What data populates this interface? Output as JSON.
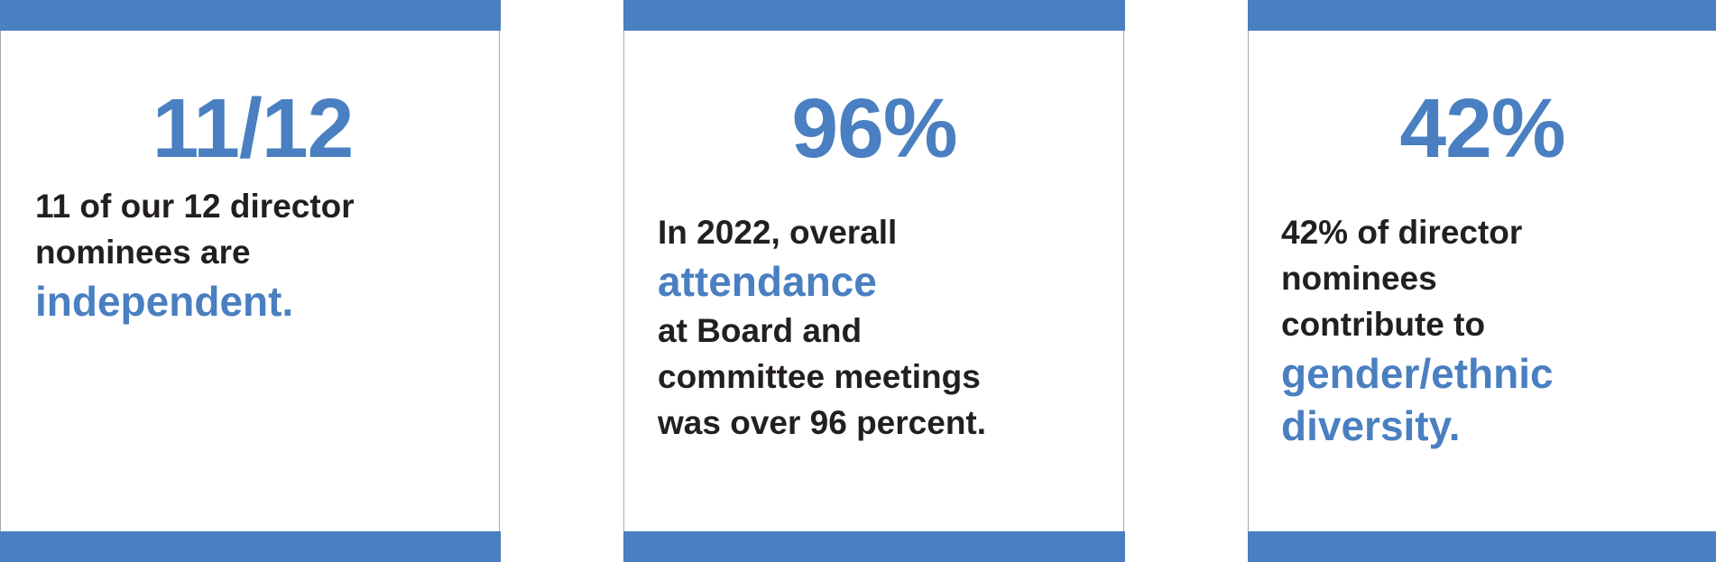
{
  "cards": [
    {
      "stat": "11/12",
      "intro": [
        "11 of our 12 director",
        "nominees are"
      ],
      "highlight": [
        "independent."
      ],
      "after": []
    },
    {
      "stat": "96%",
      "intro": [
        "In 2022, overall"
      ],
      "highlight": [
        "attendance"
      ],
      "after": [
        "at Board and",
        "committee meetings",
        "was over 96 percent."
      ]
    },
    {
      "stat": "42%",
      "intro": [
        "42% of director",
        "nominees",
        "contribute to"
      ],
      "highlight": [
        "gender/ethnic",
        "diversity."
      ],
      "after": []
    }
  ]
}
